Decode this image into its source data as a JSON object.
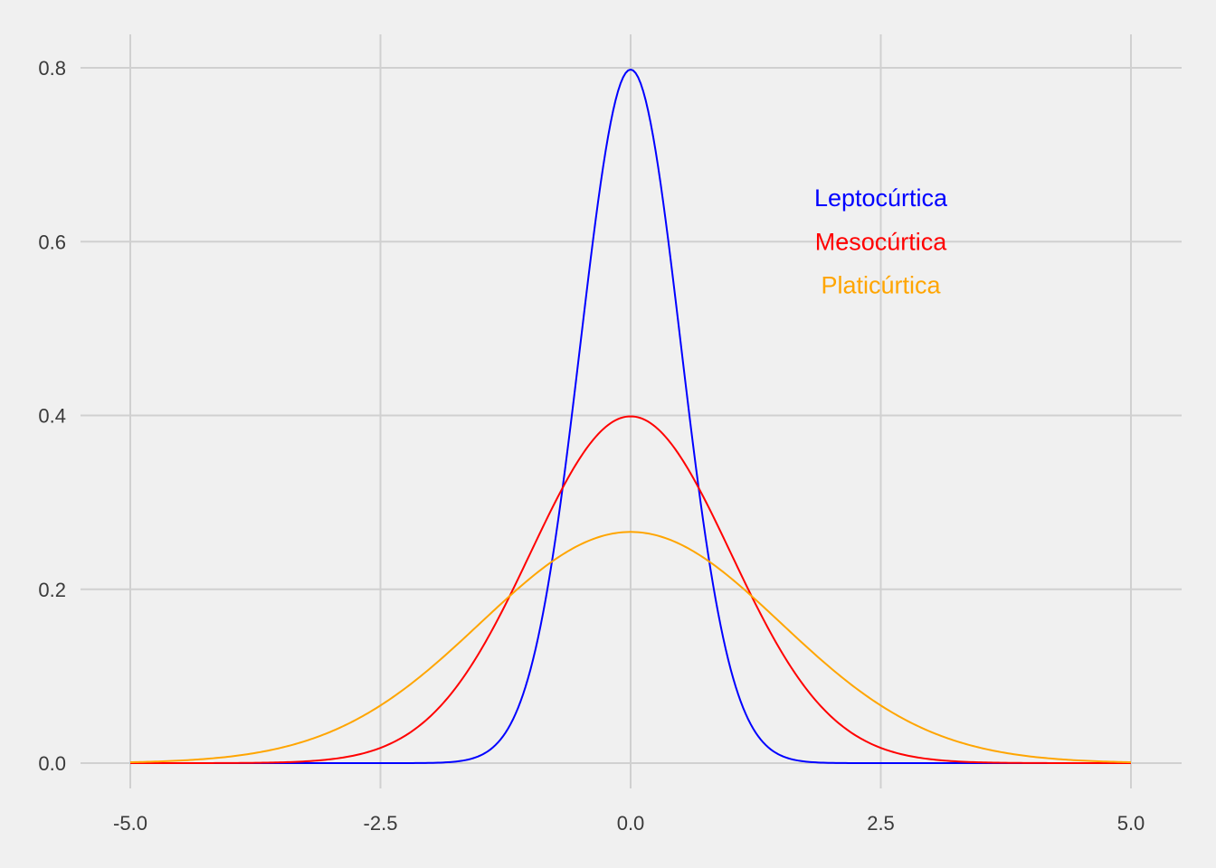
{
  "chart_data": {
    "type": "line",
    "title": "",
    "xlabel": "",
    "ylabel": "",
    "xlim": [
      -5.0,
      5.0
    ],
    "ylim": [
      0.0,
      0.8
    ],
    "x_ticks": [
      "-5.0",
      "-2.5",
      "0.0",
      "2.5",
      "5.0"
    ],
    "y_ticks": [
      "0.0",
      "0.2",
      "0.4",
      "0.6",
      "0.8"
    ],
    "grid": true,
    "series": [
      {
        "name": "Leptocúrtica",
        "color": "#0000ff",
        "distribution": "normal",
        "mean": 0,
        "sd": 0.5,
        "peak": 0.798,
        "x": [
          -5.0,
          -2.0,
          -1.5,
          -1.0,
          -0.5,
          0.0,
          0.5,
          1.0,
          1.5,
          2.0,
          5.0
        ],
        "y": [
          0.0,
          0.0003,
          0.0089,
          0.108,
          0.484,
          0.798,
          0.484,
          0.108,
          0.0089,
          0.0003,
          0.0
        ]
      },
      {
        "name": "Mesocúrtica",
        "color": "#ff0000",
        "distribution": "normal",
        "mean": 0,
        "sd": 1,
        "peak": 0.399,
        "x": [
          -5.0,
          -3.0,
          -2.0,
          -1.0,
          0.0,
          1.0,
          2.0,
          3.0,
          5.0
        ],
        "y": [
          0.0,
          0.0044,
          0.054,
          0.242,
          0.399,
          0.242,
          0.054,
          0.0044,
          0.0
        ]
      },
      {
        "name": "Platicúrtica",
        "color": "#ffa500",
        "distribution": "normal",
        "mean": 0,
        "sd": 1.5,
        "peak": 0.266,
        "x": [
          -5.0,
          -3.0,
          -2.0,
          -1.0,
          0.0,
          1.0,
          2.0,
          3.0,
          5.0
        ],
        "y": [
          0.001,
          0.036,
          0.109,
          0.213,
          0.266,
          0.213,
          0.109,
          0.036,
          0.001
        ]
      }
    ],
    "annotations": [
      {
        "text": "Leptocúrtica",
        "x": 2.5,
        "y": 0.65,
        "color": "#0000ff"
      },
      {
        "text": "Mesocúrtica",
        "x": 2.5,
        "y": 0.6,
        "color": "#ff0000"
      },
      {
        "text": "Platicúrtica",
        "x": 2.5,
        "y": 0.55,
        "color": "#ffa500"
      }
    ],
    "colors": {
      "background": "#f0f0f0",
      "grid": "#d0d0d0",
      "tick_text": "#3a3a3a"
    }
  }
}
